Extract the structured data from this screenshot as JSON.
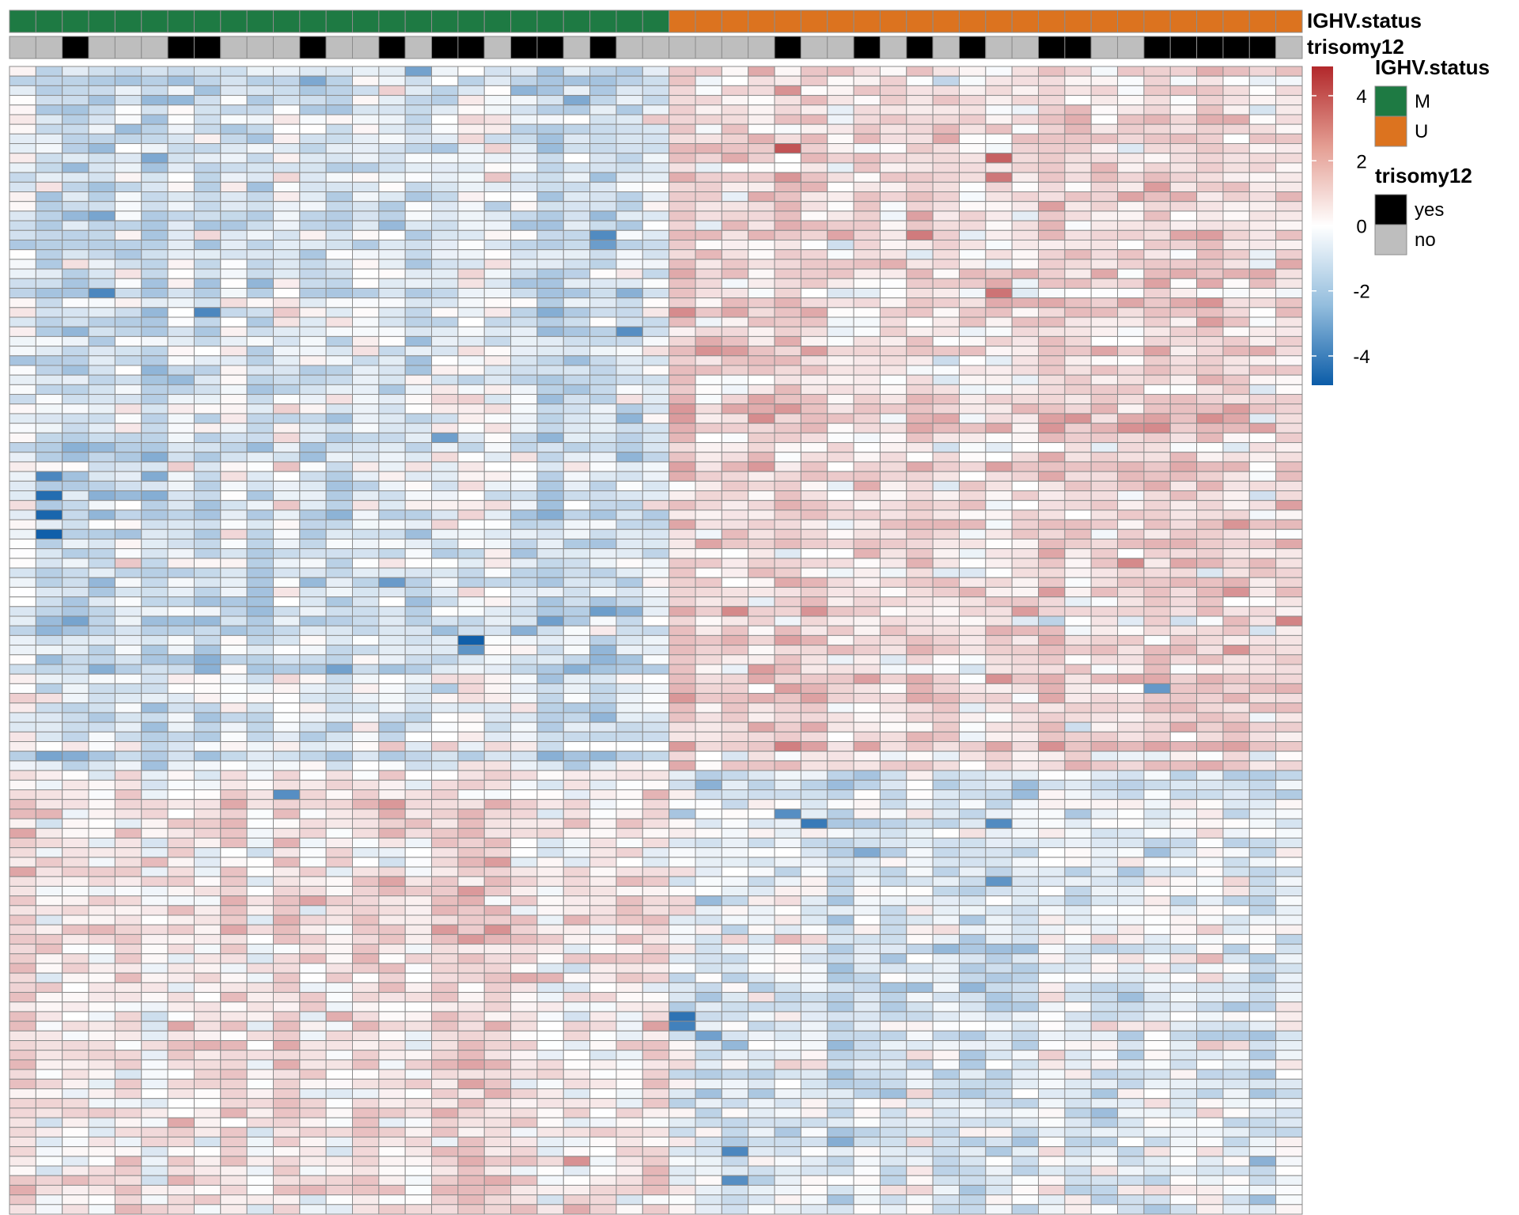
{
  "chart_data": {
    "type": "heatmap",
    "n_rows": 119,
    "n_cols": 49,
    "annotations": [
      {
        "name": "IGHV.status",
        "legend_title": "IGHV.status",
        "levels": [
          {
            "label": "M",
            "color": "#1E7A43"
          },
          {
            "label": "U",
            "color": "#DC731F"
          }
        ],
        "values": [
          "M",
          "M",
          "M",
          "M",
          "M",
          "M",
          "M",
          "M",
          "M",
          "M",
          "M",
          "M",
          "M",
          "M",
          "M",
          "M",
          "M",
          "M",
          "M",
          "M",
          "M",
          "M",
          "M",
          "M",
          "M",
          "U",
          "U",
          "U",
          "U",
          "U",
          "U",
          "U",
          "U",
          "U",
          "U",
          "U",
          "U",
          "U",
          "U",
          "U",
          "U",
          "U",
          "U",
          "U",
          "U",
          "U",
          "U",
          "U",
          "U"
        ]
      },
      {
        "name": "trisomy12",
        "legend_title": "trisomy12",
        "levels": [
          {
            "label": "yes",
            "color": "#000000"
          },
          {
            "label": "no",
            "color": "#BEBEBE"
          }
        ],
        "values": [
          "no",
          "no",
          "yes",
          "no",
          "no",
          "no",
          "yes",
          "yes",
          "no",
          "no",
          "no",
          "yes",
          "no",
          "no",
          "yes",
          "no",
          "yes",
          "yes",
          "no",
          "yes",
          "yes",
          "no",
          "yes",
          "no",
          "no",
          "no",
          "no",
          "no",
          "no",
          "yes",
          "no",
          "no",
          "yes",
          "no",
          "yes",
          "no",
          "yes",
          "no",
          "no",
          "yes",
          "yes",
          "no",
          "no",
          "yes",
          "yes",
          "yes",
          "yes",
          "yes",
          "no"
        ]
      }
    ],
    "color_scale": {
      "low": "#0B5CA8",
      "mid": "#FFFFFF",
      "high": "#B2282B",
      "min": -4.9,
      "max": 4.9,
      "ticks": [
        "4",
        "2",
        "0",
        "-2",
        "-4"
      ],
      "tick_values": [
        4,
        2,
        0,
        -2,
        -4
      ]
    },
    "row_groups": [
      {
        "rows": [
          0,
          72
        ],
        "M_cols_trend": -0.7,
        "U_cols_trend": 0.8
      },
      {
        "rows": [
          73,
          118
        ],
        "M_cols_trend": 0.6,
        "U_cols_trend": -0.6
      }
    ],
    "outliers": [
      {
        "row": 44,
        "col": 1,
        "value": -4.4
      },
      {
        "row": 46,
        "col": 1,
        "value": -4.6
      },
      {
        "row": 48,
        "col": 1,
        "value": -4.8
      },
      {
        "row": 42,
        "col": 1,
        "value": -3.6
      },
      {
        "row": 59,
        "col": 17,
        "value": -4.8
      },
      {
        "row": 60,
        "col": 17,
        "value": -3.2
      },
      {
        "row": 23,
        "col": 3,
        "value": -3.6
      },
      {
        "row": 25,
        "col": 7,
        "value": -3.6
      },
      {
        "row": 17,
        "col": 22,
        "value": -3.5
      },
      {
        "row": 27,
        "col": 23,
        "value": -3.4
      },
      {
        "row": 53,
        "col": 14,
        "value": -3.0
      },
      {
        "row": 0,
        "col": 15,
        "value": -2.8
      },
      {
        "row": 38,
        "col": 16,
        "value": -2.9
      },
      {
        "row": 8,
        "col": 29,
        "value": 3.9
      },
      {
        "row": 9,
        "col": 37,
        "value": 3.6
      },
      {
        "row": 11,
        "col": 37,
        "value": 3.1
      },
      {
        "row": 23,
        "col": 37,
        "value": 3.2
      },
      {
        "row": 57,
        "col": 48,
        "value": 2.8
      },
      {
        "row": 56,
        "col": 27,
        "value": 2.7
      },
      {
        "row": 78,
        "col": 30,
        "value": -4.0
      },
      {
        "row": 77,
        "col": 29,
        "value": -3.4
      },
      {
        "row": 78,
        "col": 37,
        "value": -3.5
      },
      {
        "row": 84,
        "col": 37,
        "value": -3.2
      },
      {
        "row": 98,
        "col": 25,
        "value": -4.2
      },
      {
        "row": 99,
        "col": 25,
        "value": -3.8
      },
      {
        "row": 112,
        "col": 27,
        "value": -3.6
      },
      {
        "row": 115,
        "col": 27,
        "value": -3.4
      },
      {
        "row": 75,
        "col": 10,
        "value": -3.4
      },
      {
        "row": 64,
        "col": 43,
        "value": -3.1
      }
    ]
  }
}
